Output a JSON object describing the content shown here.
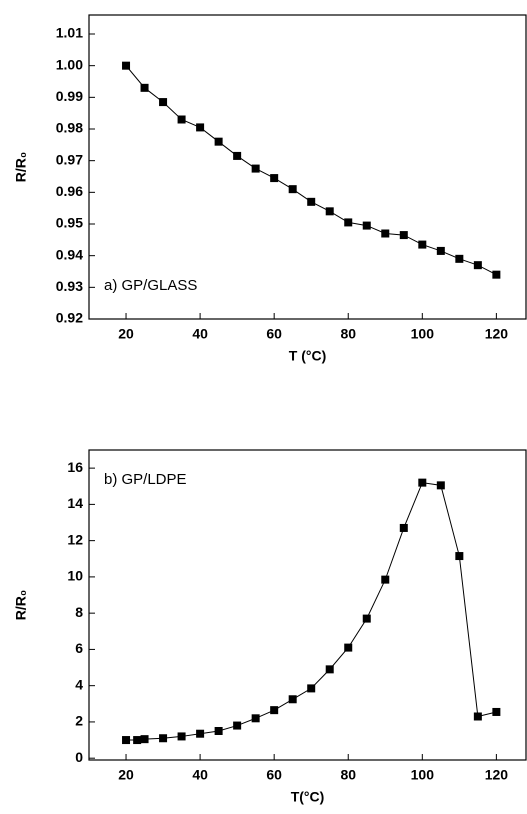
{
  "chart_data": [
    {
      "type": "line",
      "x_label": "T (°C)",
      "y_label": "R/R₀",
      "annotation": "a) GP/GLASS",
      "color": "#000000",
      "x": [
        20,
        25,
        30,
        35,
        40,
        45,
        50,
        55,
        60,
        65,
        70,
        75,
        80,
        85,
        90,
        95,
        100,
        105,
        110,
        115,
        120
      ],
      "values": [
        1.0,
        0.993,
        0.9885,
        0.983,
        0.9805,
        0.976,
        0.9715,
        0.9675,
        0.9645,
        0.961,
        0.957,
        0.954,
        0.9505,
        0.9495,
        0.947,
        0.9465,
        0.9435,
        0.9415,
        0.939,
        0.937,
        0.934
      ],
      "xlim": [
        10,
        128
      ],
      "xticks": [
        20,
        40,
        60,
        80,
        100,
        120
      ],
      "ylim": [
        0.92,
        1.016
      ],
      "yticks": [
        0.92,
        0.93,
        0.94,
        0.95,
        0.96,
        0.97,
        0.98,
        0.99,
        {
          "value": 1,
          "label": "1.00"
        },
        1.01
      ]
    },
    {
      "type": "line",
      "x_label": "T(°C)",
      "y_label": "R/R₀",
      "annotation": "b) GP/LDPE",
      "color": "#000000",
      "x": [
        20,
        23,
        25,
        30,
        35,
        40,
        45,
        50,
        55,
        60,
        65,
        70,
        75,
        80,
        85,
        90,
        95,
        100,
        105,
        110,
        115,
        120
      ],
      "values": [
        1.0,
        1.0,
        1.05,
        1.1,
        1.2,
        1.35,
        1.5,
        1.8,
        2.2,
        2.65,
        3.25,
        3.85,
        4.9,
        6.1,
        7.7,
        9.85,
        12.7,
        15.2,
        15.05,
        11.15,
        2.3,
        2.55
      ],
      "xlim": [
        10,
        128
      ],
      "xticks": [
        20,
        40,
        60,
        80,
        100,
        120
      ],
      "ylim": [
        -0.1,
        17
      ],
      "yticks": [
        0,
        2,
        4,
        6,
        8,
        10,
        12,
        14,
        16
      ]
    }
  ]
}
